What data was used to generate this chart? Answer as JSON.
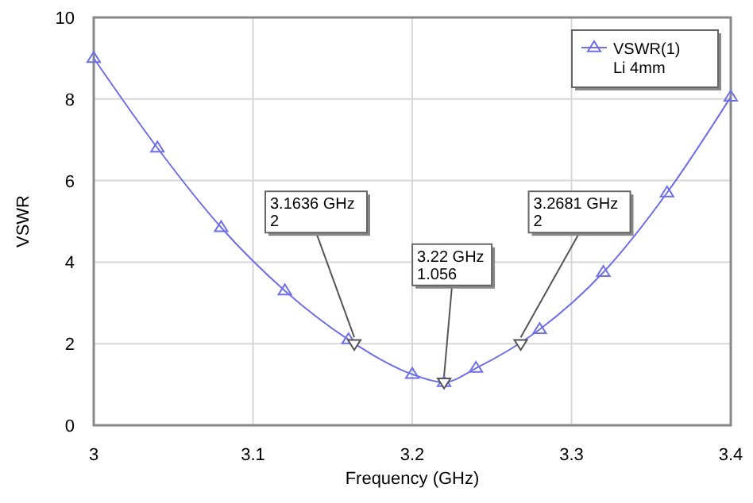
{
  "chart_data": {
    "type": "line",
    "xlabel": "Frequency (GHz)",
    "ylabel": "VSWR",
    "xlim": [
      3,
      3.4
    ],
    "xticks": [
      3,
      3.1,
      3.2,
      3.3,
      3.4
    ],
    "ylim": [
      0,
      10
    ],
    "yticks": [
      0,
      2,
      4,
      6,
      8,
      10
    ],
    "grid": true,
    "legend": "top right",
    "legend_title": "Li 4mm",
    "marker": "triangle",
    "series": [
      {
        "name": "VSWR(1)",
        "color": "#6f6fe8",
        "x": [
          3,
          3.04,
          3.08,
          3.12,
          3.16,
          3.2,
          3.22,
          3.24,
          3.28,
          3.32,
          3.36,
          3.4
        ],
        "values": [
          9.0,
          6.8,
          4.85,
          3.3,
          2.1,
          1.25,
          1.05,
          1.4,
          2.35,
          3.75,
          5.7,
          8.05
        ]
      }
    ],
    "annotations": [
      {
        "text": "3.1636 GHz\n2",
        "x": 3.1636,
        "y": 2
      },
      {
        "text": "3.22 GHz\n1.056",
        "x": 3.22,
        "y": 1.056
      },
      {
        "text": "3.2681 GHz\n2",
        "x": 3.2681,
        "y": 2
      }
    ]
  }
}
